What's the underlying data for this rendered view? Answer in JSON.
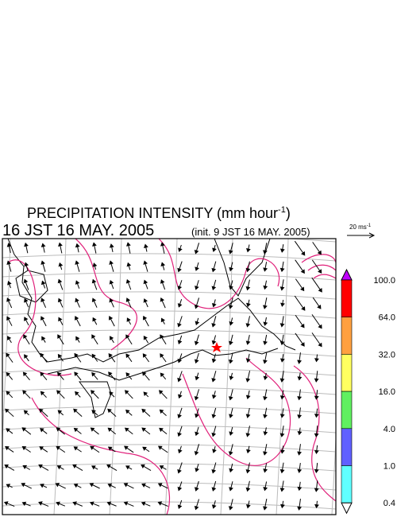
{
  "header": {
    "title": "PRECIPITATION INTENSITY (mm hour",
    "title_sup": "-1",
    "title_end": ")",
    "time": "16 JST 16 MAY. 2005",
    "init": "(init. 9 JST 16 MAY. 2005)"
  },
  "wind_reference": {
    "label": "20 ms",
    "sup": "-1"
  },
  "colorbar": {
    "labels": [
      "100.0",
      "64.0",
      "32.0",
      "16.0",
      "4.0",
      "1.0",
      "0.4"
    ],
    "colors": [
      "#ff0000",
      "#ffa040",
      "#ffff60",
      "#60f060",
      "#6060ff",
      "#60ffff"
    ],
    "over_color": "#c000ff",
    "under_color": "#ffffff"
  }
}
